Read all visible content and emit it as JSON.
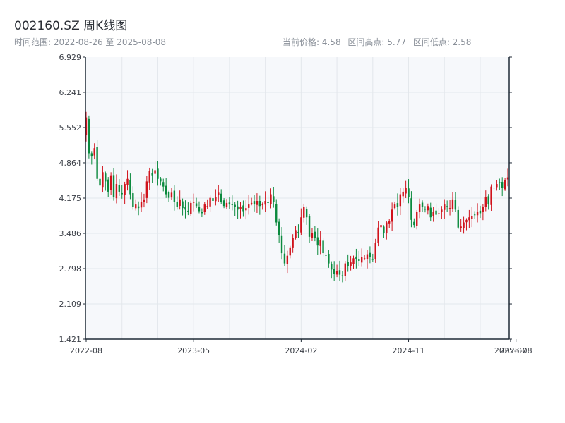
{
  "header": {
    "title": "002160.SZ 周K线图",
    "subtitle": "时间范围: 2022-08-26 至 2025-08-08",
    "stats": {
      "current_price": "当前价格: 4.58",
      "range_high": "区间高点: 5.77",
      "range_low": "区间低点: 2.58"
    }
  },
  "colors": {
    "up": "#d0121b",
    "down": "#0b8a3e",
    "plot_bg": "#f6f8fb",
    "grid": "#e3e7ec",
    "axis": "#1f2a36"
  },
  "chart_data": {
    "type": "candlestick",
    "title": "002160.SZ 周K线图",
    "xlabel": "",
    "ylabel": "",
    "ylim": [
      1.421,
      6.929
    ],
    "yticks": [
      "1.421",
      "2.109",
      "2.798",
      "3.486",
      "4.175",
      "4.864",
      "5.552",
      "6.241",
      "6.929"
    ],
    "xticks": [
      {
        "label": "2022-08",
        "week": 0
      },
      {
        "label": "2023-05",
        "week": 39
      },
      {
        "label": "2024-02",
        "week": 78
      },
      {
        "label": "2024-11",
        "week": 117
      },
      {
        "label": "2025-07",
        "week": 154
      },
      {
        "label": "2025-08",
        "week": 156
      }
    ],
    "grid": true,
    "up_color": "#d0121b",
    "down_color": "#0b8a3e",
    "closes": [
      5.75,
      5.05,
      5.0,
      5.15,
      4.55,
      4.42,
      4.68,
      4.5,
      4.3,
      4.62,
      4.2,
      4.45,
      4.3,
      4.25,
      4.45,
      4.55,
      4.25,
      4.0,
      4.05,
      3.98,
      4.1,
      4.15,
      4.5,
      4.7,
      4.62,
      4.72,
      4.55,
      4.5,
      4.4,
      4.25,
      4.18,
      4.28,
      4.1,
      4.0,
      4.15,
      3.98,
      3.95,
      3.9,
      4.08,
      4.1,
      4.02,
      3.92,
      3.88,
      4.05,
      4.02,
      4.18,
      4.12,
      4.2,
      4.28,
      4.1,
      4.02,
      4.08,
      4.05,
      4.05,
      4.0,
      3.95,
      4.0,
      3.92,
      3.98,
      4.05,
      4.08,
      4.05,
      4.12,
      4.02,
      4.05,
      4.12,
      4.08,
      4.25,
      4.1,
      3.7,
      3.45,
      3.1,
      2.9,
      3.05,
      3.2,
      3.4,
      3.55,
      3.5,
      3.8,
      4.0,
      3.8,
      3.42,
      3.5,
      3.4,
      3.25,
      3.35,
      3.1,
      3.05,
      2.9,
      2.78,
      2.7,
      2.75,
      2.68,
      2.65,
      2.9,
      2.85,
      2.92,
      3.0,
      2.98,
      2.95,
      3.02,
      3.0,
      3.08,
      3.02,
      2.98,
      3.3,
      3.6,
      3.65,
      3.5,
      3.7,
      3.72,
      3.95,
      4.05,
      4.0,
      4.25,
      4.3,
      4.38,
      4.2,
      3.75,
      3.65,
      3.9,
      4.05,
      4.0,
      3.95,
      4.02,
      3.8,
      3.9,
      3.85,
      3.88,
      3.95,
      4.05,
      4.0,
      3.98,
      4.15,
      3.95,
      3.6,
      3.62,
      3.7,
      3.75,
      3.8,
      3.82,
      3.85,
      3.9,
      3.88,
      4.0,
      4.2,
      4.05,
      4.4,
      4.38,
      4.45,
      4.48,
      4.38,
      4.52,
      4.58
    ],
    "note": ""
  }
}
